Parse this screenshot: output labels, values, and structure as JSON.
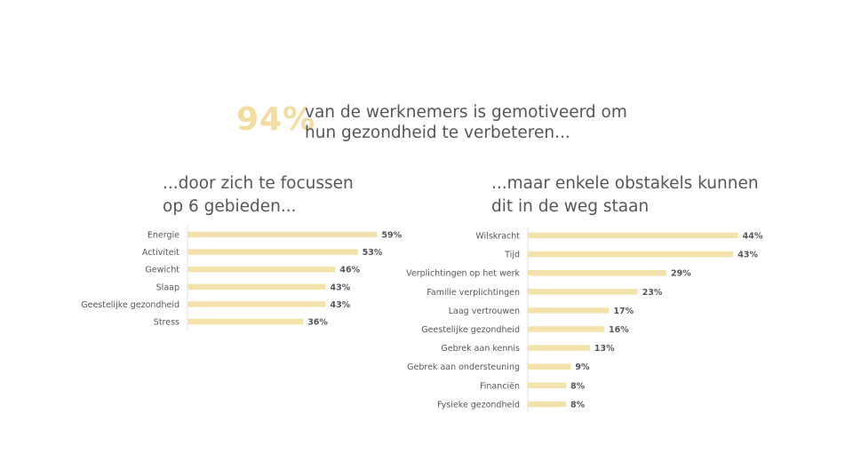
{
  "headline": {
    "percentage": "94%",
    "line1": "van de werknemers is gemotiveerd om",
    "line2": "hun gezondheid te verbeteren..."
  },
  "accent_color": "#f2dc9f",
  "bar_color": "#f3e2ab",
  "chart_data": [
    {
      "type": "bar",
      "orientation": "horizontal",
      "title_line1": "...door zich te focussen",
      "title_line2": "op 6 gebieden...",
      "categories": [
        "Energie",
        "Activiteit",
        "Gewicht",
        "Slaap",
        "Geestelijke gezondheid",
        "Stress"
      ],
      "values": [
        59,
        53,
        46,
        43,
        43,
        36
      ],
      "value_labels": [
        "59%",
        "53%",
        "46%",
        "43%",
        "43%",
        "36%"
      ],
      "xlim": [
        0,
        60
      ]
    },
    {
      "type": "bar",
      "orientation": "horizontal",
      "title_line1": "...maar enkele obstakels kunnen",
      "title_line2": "dit in de weg staan",
      "categories": [
        "Wilskracht",
        "Tijd",
        "Verplichtingen op het werk",
        "Familie verplichtingen",
        "Laag vertrouwen",
        "Geestelijke gezondheid",
        "Gebrek aan kennis",
        "Gebrek aan ondersteuning",
        "Financiën",
        "Fysieke gezondheid"
      ],
      "values": [
        44,
        43,
        29,
        23,
        17,
        16,
        13,
        9,
        8,
        8
      ],
      "value_labels": [
        "44%",
        "43%",
        "29%",
        "23%",
        "17%",
        "16%",
        "13%",
        "9%",
        "8%",
        "8%"
      ],
      "xlim": [
        0,
        45
      ]
    }
  ]
}
